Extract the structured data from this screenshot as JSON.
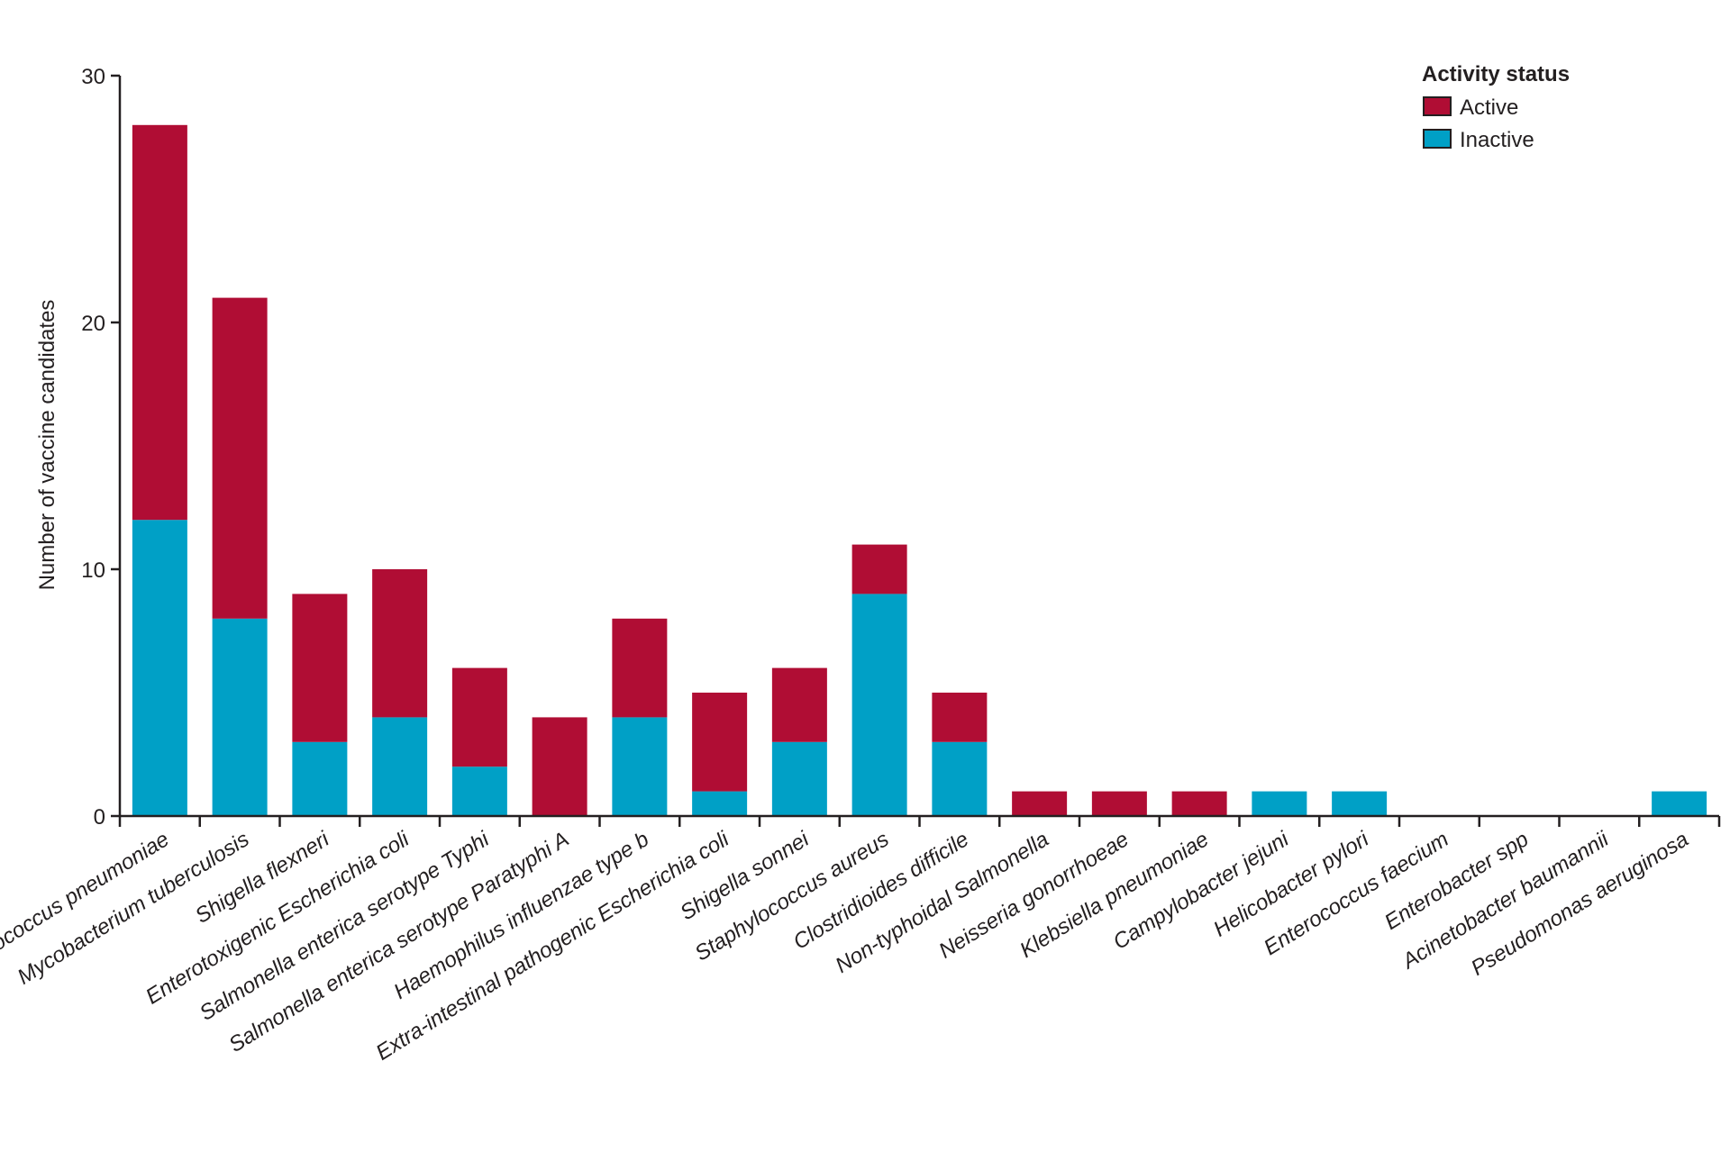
{
  "chart_data": {
    "type": "bar",
    "stacked": true,
    "title": "",
    "xlabel": "",
    "ylabel": "Number of vaccine candidates",
    "ylim": [
      0,
      30
    ],
    "yticks": [
      0,
      10,
      20,
      30
    ],
    "categories": [
      "Streptococcus pneumoniae",
      "Mycobacterium tuberculosis",
      "Shigella flexneri",
      "Enterotoxigenic Escherichia coli",
      "Salmonella enterica serotype Typhi",
      "Salmonella enterica serotype Paratyphi A",
      "Haemophilus influenzae type b",
      "Extra-intestinal pathogenic Escherichia coli",
      "Shigella sonnei",
      "Staphylococcus aureus",
      "Clostridioides difficile",
      "Non-typhoidal Salmonella",
      "Neisseria gonorrhoeae",
      "Klebsiella pneumoniae",
      "Campylobacter jejuni",
      "Helicobacter pylori",
      "Enterococcus faecium",
      "Enterobacter spp",
      "Acinetobacter baumannii",
      "Pseudomonas aeruginosa"
    ],
    "series": [
      {
        "name": "Inactive",
        "color": "#00a0c6",
        "values": [
          12,
          8,
          3,
          4,
          2,
          0,
          4,
          1,
          3,
          9,
          3,
          0,
          0,
          0,
          1,
          1,
          0,
          0,
          0,
          1
        ]
      },
      {
        "name": "Active",
        "color": "#b00d34",
        "values": [
          16,
          13,
          6,
          6,
          4,
          4,
          4,
          4,
          3,
          2,
          2,
          1,
          1,
          1,
          0,
          0,
          0,
          0,
          0,
          0
        ]
      }
    ],
    "legend": {
      "title": "Activity status",
      "position": "top-right",
      "entries": [
        "Active",
        "Inactive"
      ]
    }
  }
}
